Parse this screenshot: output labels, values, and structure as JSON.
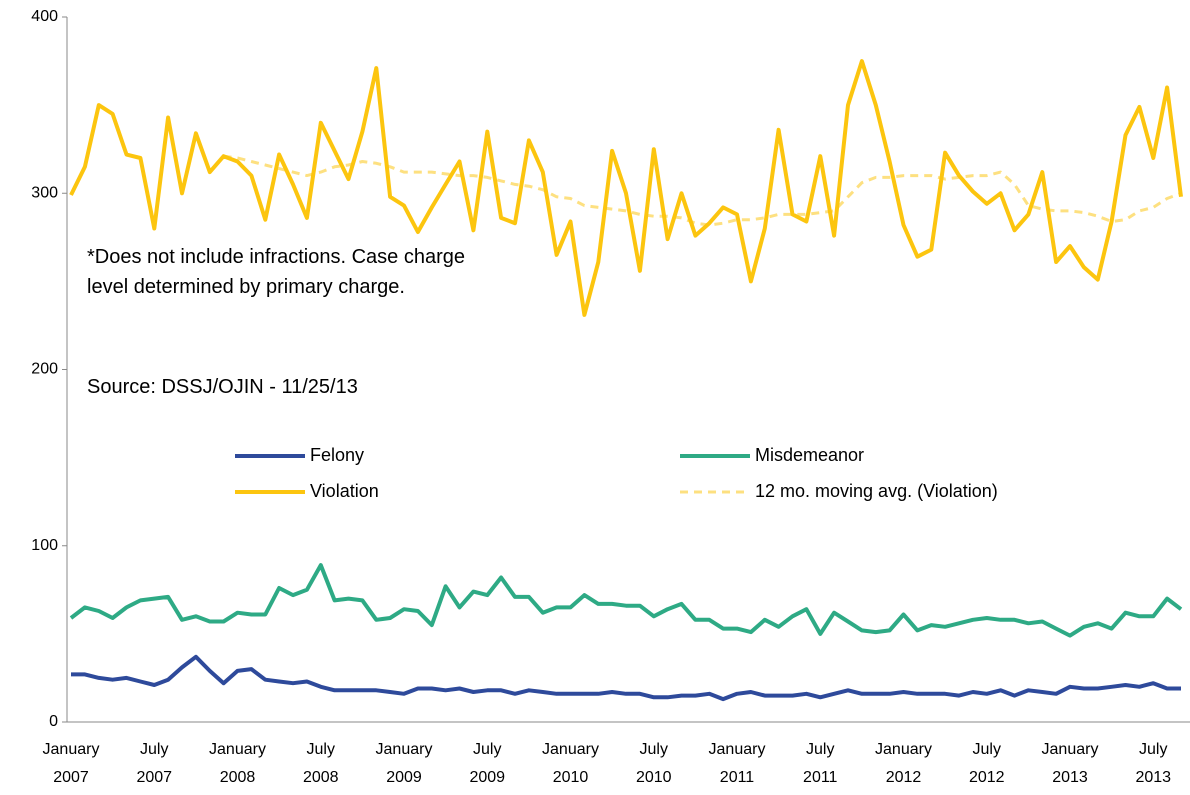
{
  "chart_data": {
    "type": "line",
    "annotations": [
      "*Does not include infractions. Case charge level determined by primary charge.",
      "Source: DSSJ/OJIN - 11/25/13"
    ],
    "categories": [
      "January 2007",
      null,
      null,
      null,
      null,
      null,
      "July 2007",
      null,
      null,
      null,
      null,
      null,
      "January 2008",
      null,
      null,
      null,
      null,
      null,
      "July 2008",
      null,
      null,
      null,
      null,
      null,
      "January 2009",
      null,
      null,
      null,
      null,
      null,
      "July 2009",
      null,
      null,
      null,
      null,
      null,
      "January 2010",
      null,
      null,
      null,
      null,
      null,
      "July 2010",
      null,
      null,
      null,
      null,
      null,
      "January 2011",
      null,
      null,
      null,
      null,
      null,
      "July 2011",
      null,
      null,
      null,
      null,
      null,
      "January 2012",
      null,
      null,
      null,
      null,
      null,
      "July 2012",
      null,
      null,
      null,
      null,
      null,
      "January 2013",
      null,
      null,
      null,
      null,
      null,
      "July 2013",
      null,
      null
    ],
    "series": [
      {
        "name": "Felony",
        "color": "#2e4a9b",
        "values": [
          27,
          27,
          25,
          24,
          25,
          23,
          21,
          24,
          31,
          37,
          29,
          22,
          29,
          30,
          24,
          23,
          22,
          23,
          20,
          18,
          18,
          18,
          18,
          17,
          16,
          19,
          19,
          18,
          19,
          17,
          18,
          18,
          16,
          18,
          17,
          16,
          16,
          16,
          16,
          17,
          16,
          16,
          14,
          14,
          15,
          15,
          16,
          13,
          16,
          17,
          15,
          15,
          15,
          16,
          14,
          16,
          18,
          16,
          16,
          16,
          17,
          16,
          16,
          16,
          15,
          17,
          16,
          18,
          15,
          18,
          17,
          16,
          20,
          19,
          19,
          20,
          21,
          20,
          22,
          19,
          19
        ]
      },
      {
        "name": "Misdemeanor",
        "color": "#2eaa85",
        "values": [
          59,
          65,
          63,
          59,
          65,
          69,
          70,
          71,
          58,
          60,
          57,
          57,
          62,
          61,
          61,
          76,
          72,
          75,
          89,
          69,
          70,
          69,
          58,
          59,
          64,
          63,
          55,
          77,
          65,
          74,
          72,
          82,
          71,
          71,
          62,
          65,
          65,
          72,
          67,
          67,
          66,
          66,
          60,
          64,
          67,
          58,
          58,
          53,
          53,
          51,
          58,
          54,
          60,
          64,
          50,
          62,
          57,
          52,
          51,
          52,
          61,
          52,
          55,
          54,
          56,
          58,
          59,
          58,
          58,
          56,
          57,
          53,
          49,
          54,
          56,
          53,
          62,
          60,
          60,
          70,
          64
        ]
      },
      {
        "name": "Violation",
        "color": "#fcc50f",
        "values": [
          299,
          315,
          350,
          345,
          322,
          320,
          280,
          343,
          300,
          334,
          312,
          321,
          318,
          310,
          285,
          322,
          305,
          286,
          340,
          324,
          308,
          335,
          371,
          298,
          293,
          278,
          292,
          305,
          318,
          279,
          335,
          286,
          283,
          330,
          312,
          265,
          284,
          231,
          261,
          324,
          300,
          256,
          325,
          274,
          300,
          276,
          283,
          292,
          288,
          250,
          280,
          336,
          288,
          284,
          321,
          276,
          350,
          375,
          350,
          318,
          282,
          264,
          268,
          323,
          310,
          301,
          294,
          300,
          279,
          288,
          312,
          261,
          270,
          258,
          251,
          284,
          333,
          349,
          320,
          360,
          298
        ]
      },
      {
        "name": "12 mo. moving avg. (Violation)",
        "color": "#fde080",
        "dashed": true,
        "values": [
          null,
          null,
          null,
          null,
          null,
          null,
          null,
          null,
          null,
          null,
          null,
          321,
          320,
          318,
          316,
          314,
          312,
          310,
          312,
          315,
          316,
          318,
          317,
          315,
          312,
          312,
          312,
          311,
          310,
          310,
          309,
          307,
          305,
          304,
          302,
          298,
          297,
          293,
          292,
          291,
          290,
          288,
          287,
          287,
          286,
          283,
          282,
          283,
          285,
          285,
          286,
          288,
          288,
          288,
          289,
          290,
          298,
          306,
          309,
          309,
          310,
          310,
          310,
          308,
          309,
          310,
          310,
          312,
          305,
          293,
          291,
          290,
          290,
          289,
          287,
          284,
          285,
          290,
          292,
          297,
          300
        ]
      }
    ],
    "ylim": [
      0,
      400
    ],
    "yticks": [
      0,
      100,
      200,
      300,
      400
    ],
    "grid": false
  }
}
